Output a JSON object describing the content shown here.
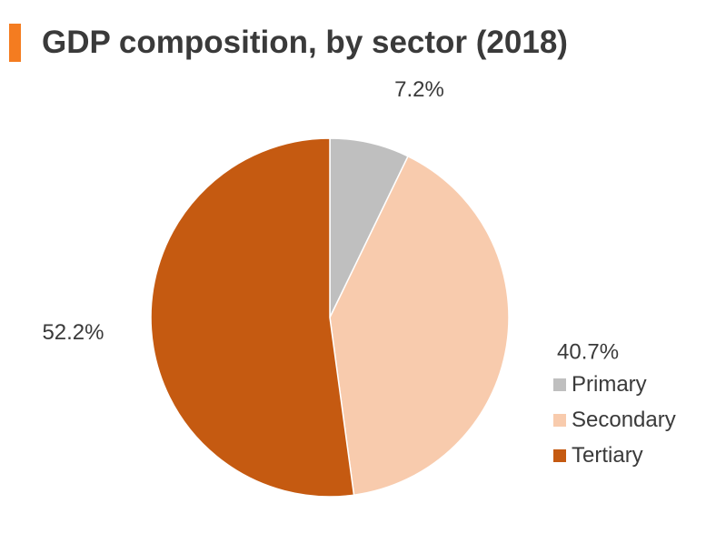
{
  "title": "GDP composition, by sector (2018)",
  "accent_color": "#f47c20",
  "chart_data": {
    "type": "pie",
    "title": "GDP composition, by sector (2018)",
    "slices": [
      {
        "name": "Primary",
        "value": 7.2,
        "label": "7.2%",
        "color": "#bfbfbf"
      },
      {
        "name": "Secondary",
        "value": 40.7,
        "label": "40.7%",
        "color": "#f8cbad"
      },
      {
        "name": "Tertiary",
        "value": 52.2,
        "label": "52.2%",
        "color": "#c55a11"
      }
    ],
    "legend_position": "bottom-right"
  }
}
